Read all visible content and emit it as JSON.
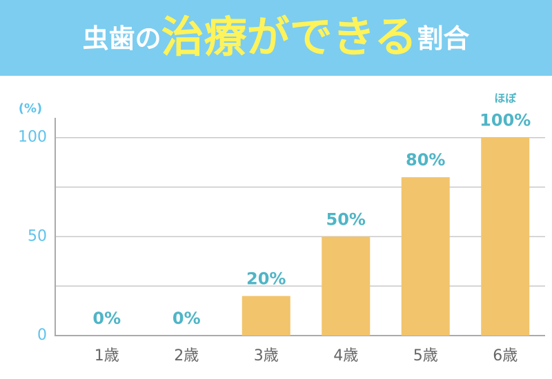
{
  "chart_data": {
    "type": "bar",
    "title": [
      "虫歯の",
      "治療ができる",
      "割合"
    ],
    "y_axis_label": "(%)",
    "categories": [
      "1歳",
      "2歳",
      "3歳",
      "4歳",
      "5歳",
      "6歳"
    ],
    "values": [
      0,
      0,
      20,
      50,
      80,
      100
    ],
    "value_labels": [
      "0%",
      "0%",
      "20%",
      "50%",
      "80%",
      "100%"
    ],
    "annotations": [
      {
        "category": 5,
        "text": "ほぼ"
      }
    ],
    "color": "#f2c46b",
    "ylim": [
      0,
      110
    ],
    "yticks": [
      0,
      50,
      100
    ],
    "minor_yticks": [
      25,
      75
    ],
    "grid": true
  }
}
